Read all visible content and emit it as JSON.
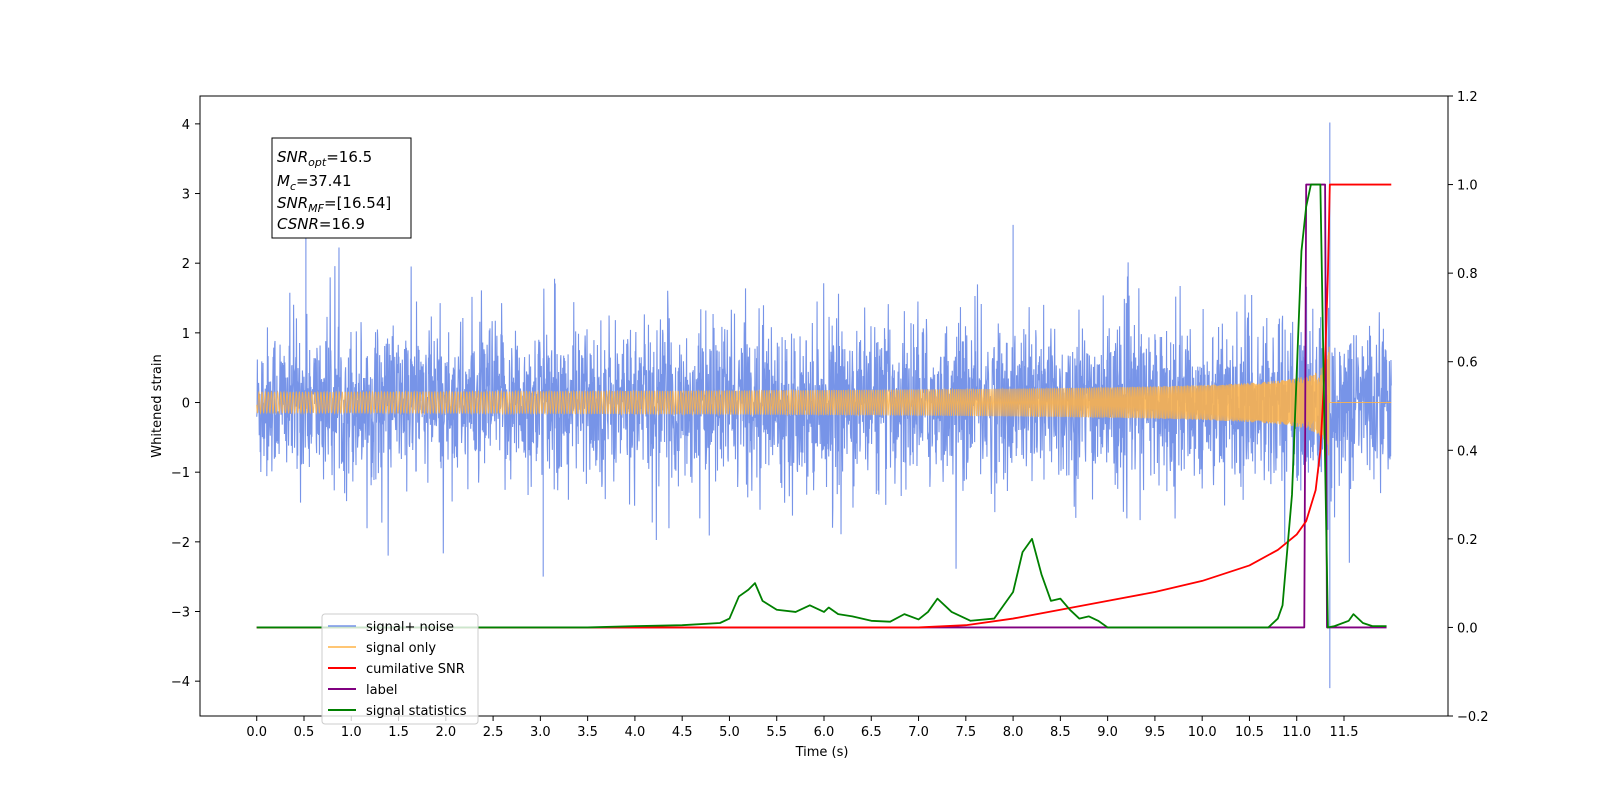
{
  "chart_data": {
    "type": "line",
    "xlabel": "Time (s)",
    "ylabel_left": "Whitened strain",
    "ylabel_right": "",
    "xlim": [
      -0.6,
      12.6
    ],
    "ylim_left": [
      -4.5,
      4.4
    ],
    "ylim_right": [
      -0.2,
      1.2
    ],
    "x_ticks": [
      "0.0",
      "0.5",
      "1.0",
      "1.5",
      "2.0",
      "2.5",
      "3.0",
      "3.5",
      "4.0",
      "4.5",
      "5.0",
      "5.5",
      "6.0",
      "6.5",
      "7.0",
      "7.5",
      "8.0",
      "8.5",
      "9.0",
      "9.5",
      "10.0",
      "10.5",
      "11.0",
      "11.5"
    ],
    "y_left_ticks": [
      "4",
      "3",
      "2",
      "1",
      "0",
      "−1",
      "−2",
      "−3",
      "−4"
    ],
    "y_right_ticks": [
      "1.2",
      "1.0",
      "0.8",
      "0.6",
      "0.4",
      "0.2",
      "0.0",
      "−0.2"
    ],
    "grid": false,
    "legend_position": "lower-left",
    "annotation": {
      "lines": [
        {
          "base": "SNR",
          "sub": "opt",
          "rest": "=16.5"
        },
        {
          "base": "M",
          "sub": "c",
          "rest": "=37.41"
        },
        {
          "base": "SNR",
          "sub": "MF",
          "rest": "=[16.54]"
        },
        {
          "base": "CSNR",
          "sub": "",
          "rest": "=16.9"
        }
      ]
    },
    "series": [
      {
        "name": "signal+ noise",
        "color": "#7794e8",
        "axis": "left",
        "noise_std": 0.55,
        "x_range": [
          0.0,
          12.0
        ],
        "notable_points": [
          [
            0.52,
            2.4
          ],
          [
            3.03,
            -2.5
          ],
          [
            8.0,
            2.55
          ],
          [
            11.35,
            4.02
          ],
          [
            11.35,
            -4.1
          ]
        ]
      },
      {
        "name": "signal only",
        "color": "#ffb347",
        "axis": "left",
        "chirp_end": 11.35,
        "peak_amplitude": 1.2
      },
      {
        "name": "cumilative SNR",
        "color": "#ff0000",
        "axis": "right",
        "points": [
          [
            0.0,
            0.0
          ],
          [
            7.0,
            0.0
          ],
          [
            7.5,
            0.005
          ],
          [
            8.0,
            0.02
          ],
          [
            8.5,
            0.04
          ],
          [
            9.0,
            0.06
          ],
          [
            9.5,
            0.08
          ],
          [
            10.0,
            0.105
          ],
          [
            10.5,
            0.14
          ],
          [
            10.8,
            0.175
          ],
          [
            11.0,
            0.21
          ],
          [
            11.1,
            0.24
          ],
          [
            11.2,
            0.31
          ],
          [
            11.25,
            0.4
          ],
          [
            11.3,
            0.6
          ],
          [
            11.33,
            0.8
          ],
          [
            11.35,
            1.0
          ],
          [
            12.0,
            1.0
          ]
        ]
      },
      {
        "name": "label",
        "color": "#800080",
        "axis": "right",
        "points": [
          [
            0.0,
            0.0
          ],
          [
            11.08,
            0.0
          ],
          [
            11.1,
            1.0
          ],
          [
            11.3,
            1.0
          ],
          [
            11.32,
            0.0
          ],
          [
            11.95,
            0.0
          ]
        ]
      },
      {
        "name": "signal statistics",
        "color": "#008000",
        "axis": "right",
        "points": [
          [
            0.0,
            0.0
          ],
          [
            1.0,
            0.0
          ],
          [
            2.0,
            0.0
          ],
          [
            3.0,
            0.0
          ],
          [
            3.5,
            0.0
          ],
          [
            4.0,
            0.003
          ],
          [
            4.5,
            0.005
          ],
          [
            4.9,
            0.01
          ],
          [
            5.0,
            0.02
          ],
          [
            5.1,
            0.07
          ],
          [
            5.2,
            0.085
          ],
          [
            5.27,
            0.1
          ],
          [
            5.35,
            0.06
          ],
          [
            5.5,
            0.04
          ],
          [
            5.7,
            0.035
          ],
          [
            5.85,
            0.05
          ],
          [
            6.0,
            0.035
          ],
          [
            6.05,
            0.045
          ],
          [
            6.15,
            0.03
          ],
          [
            6.3,
            0.025
          ],
          [
            6.5,
            0.015
          ],
          [
            6.7,
            0.013
          ],
          [
            6.85,
            0.03
          ],
          [
            7.0,
            0.018
          ],
          [
            7.1,
            0.035
          ],
          [
            7.2,
            0.065
          ],
          [
            7.35,
            0.035
          ],
          [
            7.55,
            0.015
          ],
          [
            7.8,
            0.02
          ],
          [
            7.9,
            0.05
          ],
          [
            8.0,
            0.08
          ],
          [
            8.1,
            0.17
          ],
          [
            8.2,
            0.2
          ],
          [
            8.3,
            0.12
          ],
          [
            8.4,
            0.06
          ],
          [
            8.5,
            0.065
          ],
          [
            8.6,
            0.04
          ],
          [
            8.7,
            0.02
          ],
          [
            8.8,
            0.025
          ],
          [
            8.9,
            0.015
          ],
          [
            9.0,
            0.0
          ],
          [
            10.0,
            0.0
          ],
          [
            10.7,
            0.0
          ],
          [
            10.8,
            0.02
          ],
          [
            10.85,
            0.05
          ],
          [
            10.95,
            0.3
          ],
          [
            11.05,
            0.85
          ],
          [
            11.1,
            0.95
          ],
          [
            11.15,
            1.0
          ],
          [
            11.25,
            1.0
          ],
          [
            11.33,
            0.0
          ],
          [
            11.4,
            0.003
          ],
          [
            11.55,
            0.015
          ],
          [
            11.6,
            0.03
          ],
          [
            11.7,
            0.01
          ],
          [
            11.8,
            0.003
          ],
          [
            11.95,
            0.003
          ]
        ]
      }
    ]
  }
}
